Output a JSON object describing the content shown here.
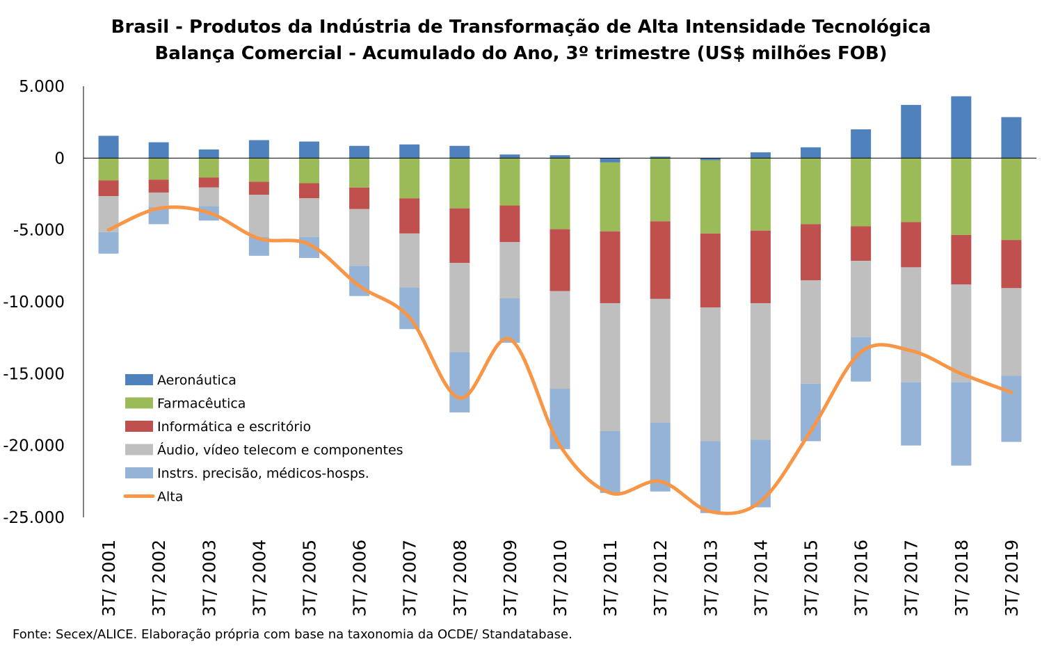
{
  "chart_data": {
    "type": "bar",
    "stacked": true,
    "title_lines": [
      "Brasil - Produtos da Indústria de Transformação de Alta Intensidade Tecnológica",
      "Balança Comercial - Acumulado do Ano, 3º trimestre (US$ milhões FOB)"
    ],
    "categories": [
      "3T/ 2001",
      "3T/ 2002",
      "3T/ 2003",
      "3T/ 2004",
      "3T/ 2005",
      "3T/ 2006",
      "3T/ 2007",
      "3T/ 2008",
      "3T/ 2009",
      "3T/ 2010",
      "3T/ 2011",
      "3T/ 2012",
      "3T/ 2013",
      "3T/ 2014",
      "3T/ 2015",
      "3T/ 2016",
      "3T/ 2017",
      "3T/ 2018",
      "3T/ 2019"
    ],
    "ylim": [
      -25000,
      5000
    ],
    "y_ticks": [
      5000,
      0,
      -5000,
      -10000,
      -15000,
      -20000,
      -25000
    ],
    "y_tick_labels": [
      "5.000",
      "0",
      "-5.000",
      "-10.000",
      "-15.000",
      "-20.000",
      "-25.000"
    ],
    "grid": false,
    "legend_position": "bottom-left",
    "series": [
      {
        "name": "Aeronáutica",
        "kind": "bar",
        "color": "#4F81BD",
        "values": [
          1550,
          1100,
          600,
          1250,
          1150,
          850,
          950,
          850,
          250,
          200,
          -300,
          100,
          -150,
          400,
          750,
          2000,
          3700,
          4300,
          2850
        ]
      },
      {
        "name": "Farmacêutica",
        "kind": "bar",
        "color": "#9BBB59",
        "values": [
          -1550,
          -1500,
          -1350,
          -1650,
          -1750,
          -2050,
          -2800,
          -3500,
          -3300,
          -4950,
          -4800,
          -4400,
          -5100,
          -5050,
          -4600,
          -4750,
          -4450,
          -5350,
          -5700
        ]
      },
      {
        "name": "Informática e escritório",
        "kind": "bar",
        "color": "#C0504D",
        "values": [
          -1100,
          -900,
          -700,
          -900,
          -1050,
          -1500,
          -2450,
          -3800,
          -2550,
          -4300,
          -5000,
          -5400,
          -5150,
          -5050,
          -3900,
          -2400,
          -3150,
          -3450,
          -3350
        ]
      },
      {
        "name": "Áudio, vídeo telecom e componentes",
        "kind": "bar",
        "color": "#BFBFBF",
        "values": [
          -2500,
          -1000,
          -1300,
          -2950,
          -2700,
          -3950,
          -3750,
          -6200,
          -3900,
          -6800,
          -8900,
          -8600,
          -9300,
          -9500,
          -7200,
          -5300,
          -8000,
          -6800,
          -6100
        ]
      },
      {
        "name": "Instrs. precisão, médicos-hosps.",
        "kind": "bar",
        "color": "#95B3D7",
        "values": [
          -1500,
          -1200,
          -1000,
          -1300,
          -1450,
          -2100,
          -2900,
          -4200,
          -3100,
          -4200,
          -4300,
          -4800,
          -5000,
          -4700,
          -4000,
          -3100,
          -4400,
          -5800,
          -4600
        ]
      },
      {
        "name": "Alta",
        "kind": "line",
        "color": "#F79646",
        "values": [
          -5000,
          -3500,
          -3800,
          -5600,
          -6000,
          -8900,
          -11100,
          -16700,
          -12600,
          -20000,
          -23300,
          -22500,
          -24600,
          -23900,
          -19000,
          -13500,
          -13400,
          -15000,
          -16300
        ]
      }
    ]
  },
  "source": "Fonte: Secex/ALICE. Elaboração própria com base na taxonomia da OCDE/ Standatabase."
}
